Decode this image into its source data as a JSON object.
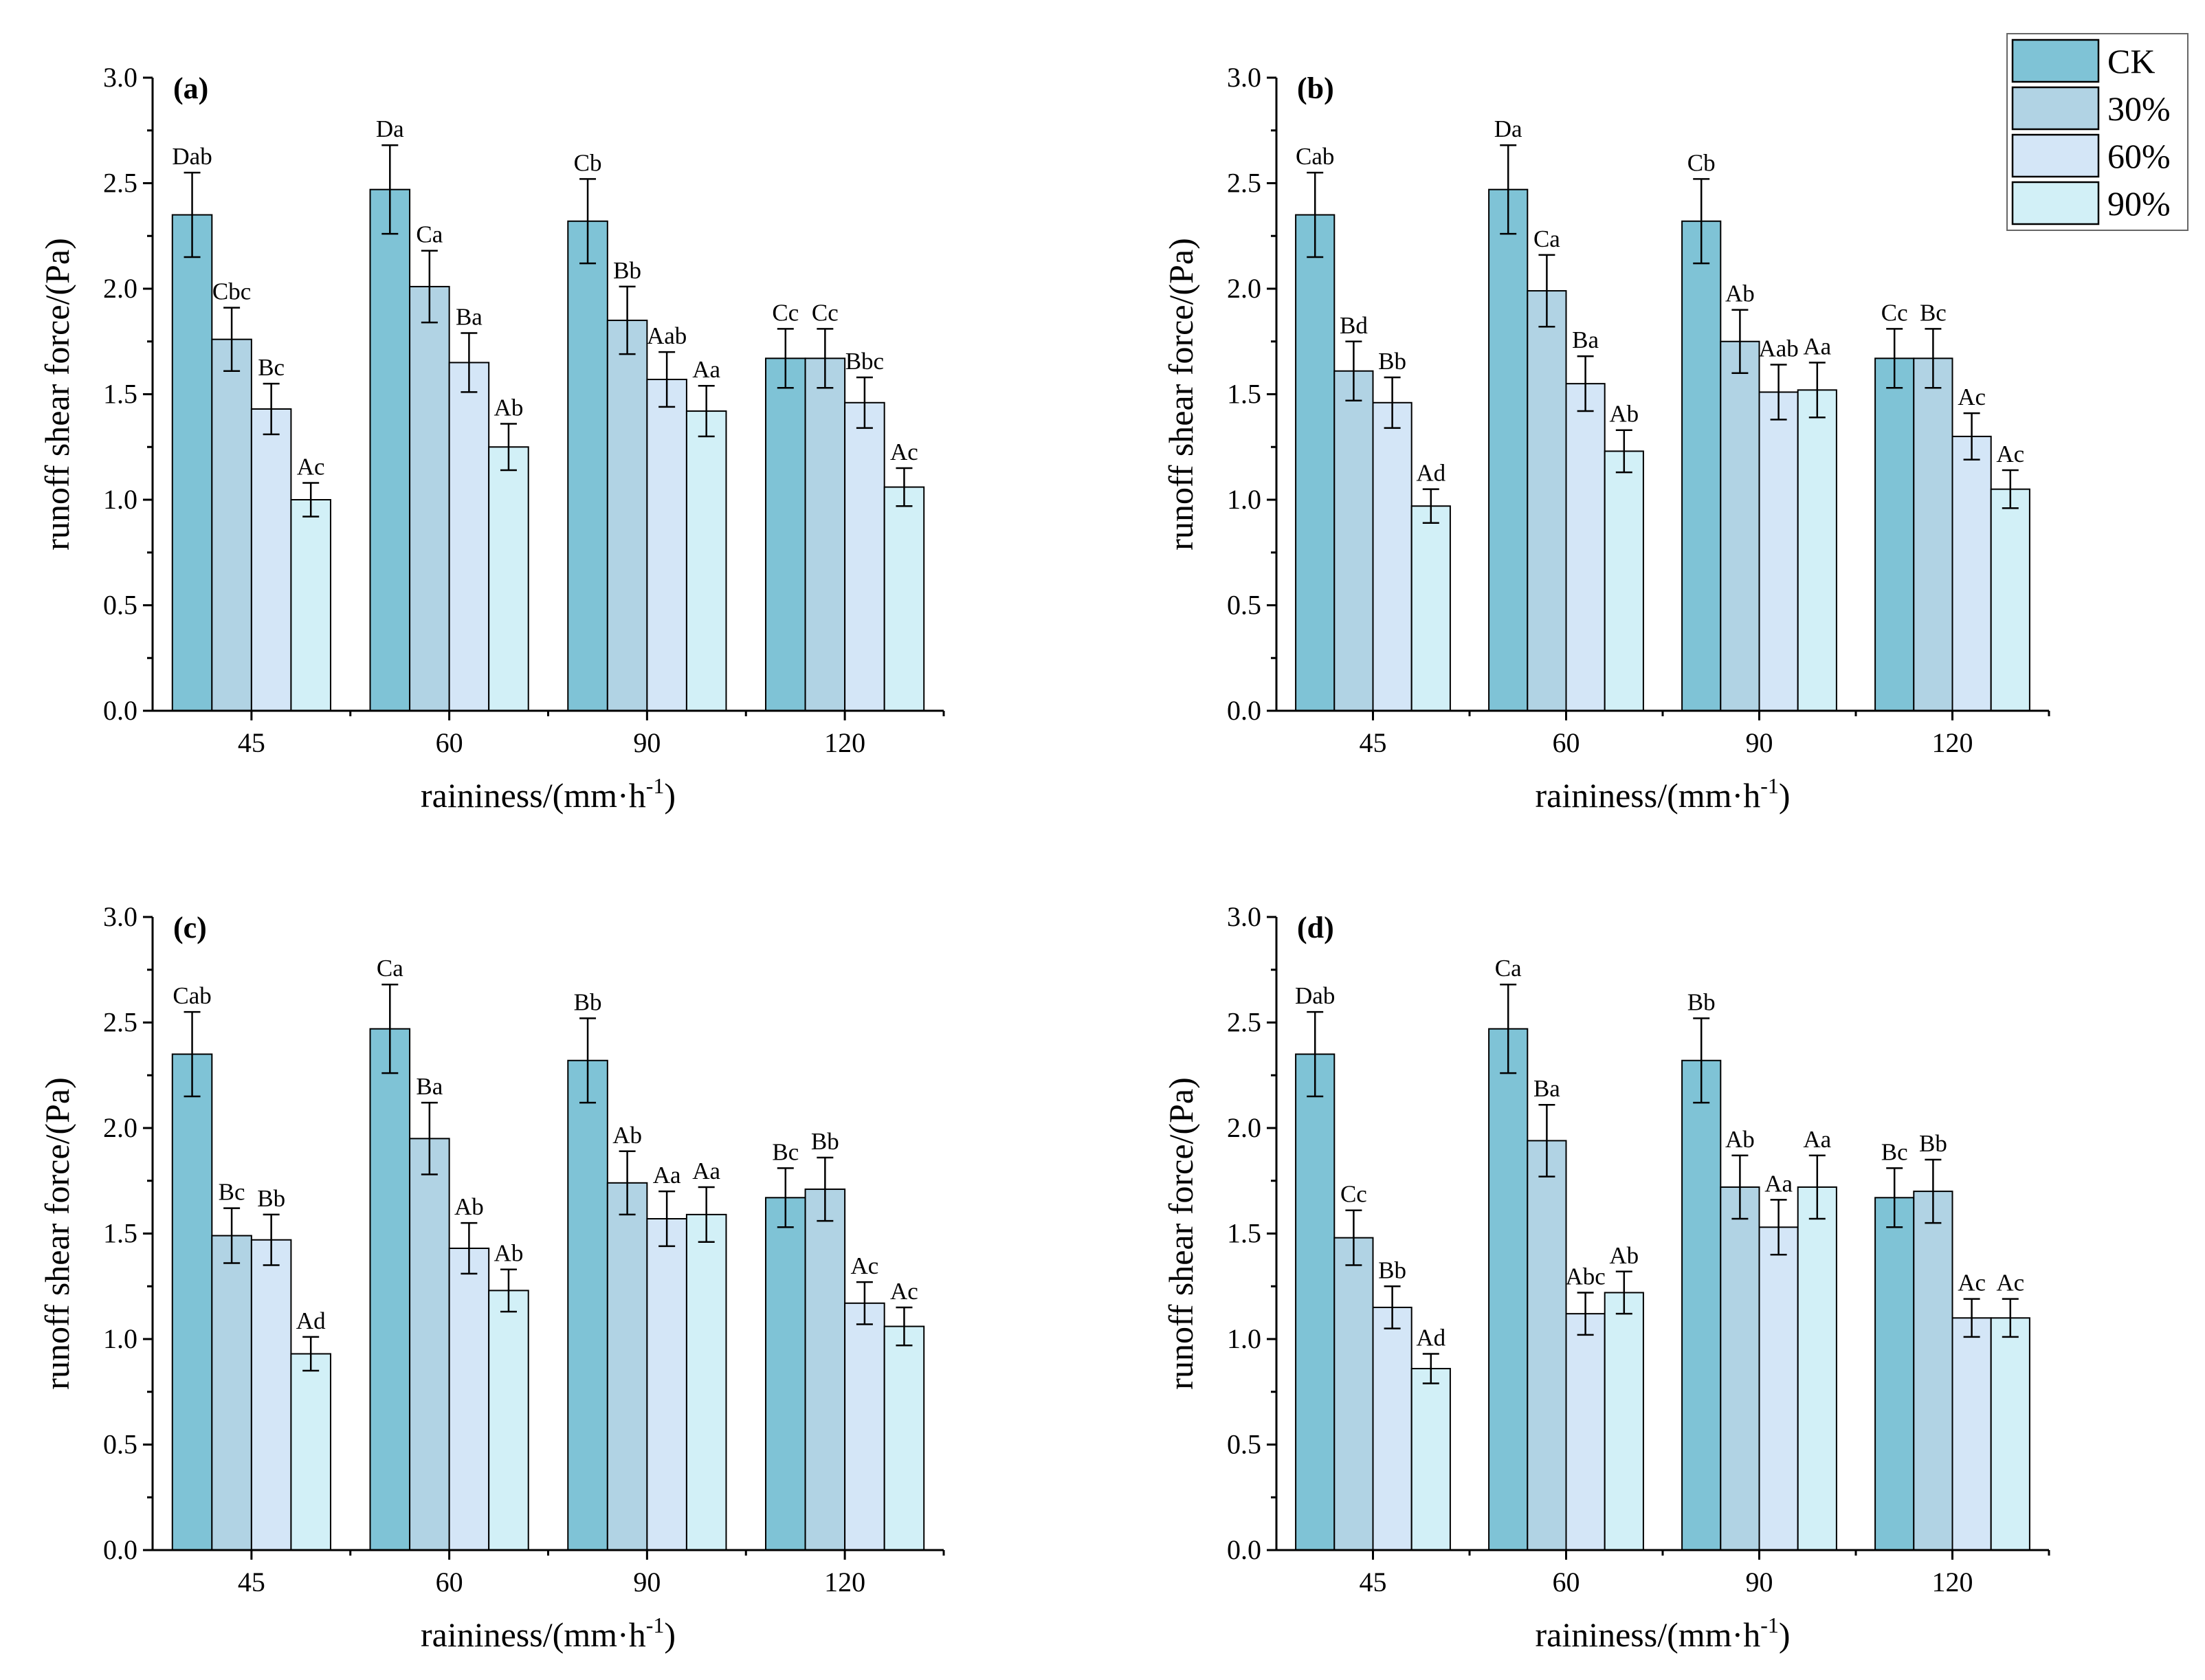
{
  "legend": {
    "entries": [
      "CK",
      "30%",
      "60%",
      "90%"
    ],
    "colors": [
      "#7fc3d6",
      "#b1d3e4",
      "#d4e6f7",
      "#d2f0f7"
    ]
  },
  "chart_data": [
    {
      "type": "bar",
      "panel_label": "(a)",
      "xlabel": "raininess/(mm·h",
      "xlabel_sup": "-1",
      "xlabel_end": ")",
      "ylabel": "runoff shear force/(Pa)",
      "ylim": [
        0,
        3.0
      ],
      "yticks": [
        "0.0",
        "0.5",
        "1.0",
        "1.5",
        "2.0",
        "2.5",
        "3.0"
      ],
      "categories": [
        "45",
        "60",
        "90",
        "120"
      ],
      "series": [
        {
          "name": "CK",
          "values": [
            2.35,
            2.47,
            2.32,
            1.67
          ],
          "errors": [
            0.2,
            0.21,
            0.2,
            0.14
          ],
          "labels": [
            "Dab",
            "Da",
            "Cb",
            "Cc"
          ]
        },
        {
          "name": "30%",
          "values": [
            1.76,
            2.01,
            1.85,
            1.67
          ],
          "errors": [
            0.15,
            0.17,
            0.16,
            0.14
          ],
          "labels": [
            "Cbc",
            "Ca",
            "Bb",
            "Cc"
          ]
        },
        {
          "name": "60%",
          "values": [
            1.43,
            1.65,
            1.57,
            1.46
          ],
          "errors": [
            0.12,
            0.14,
            0.13,
            0.12
          ],
          "labels": [
            "Bc",
            "Ba",
            "Aab",
            "Bbc"
          ]
        },
        {
          "name": "90%",
          "values": [
            1.0,
            1.25,
            1.42,
            1.06
          ],
          "errors": [
            0.08,
            0.11,
            0.12,
            0.09
          ],
          "labels": [
            "Ac",
            "Ab",
            "Aa",
            "Ac"
          ]
        }
      ]
    },
    {
      "type": "bar",
      "panel_label": "(b)",
      "xlabel": "raininess/(mm·h",
      "xlabel_sup": "-1",
      "xlabel_end": ")",
      "ylabel": "runoff shear force/(Pa)",
      "ylim": [
        0,
        3.0
      ],
      "yticks": [
        "0.0",
        "0.5",
        "1.0",
        "1.5",
        "2.0",
        "2.5",
        "3.0"
      ],
      "categories": [
        "45",
        "60",
        "90",
        "120"
      ],
      "series": [
        {
          "name": "CK",
          "values": [
            2.35,
            2.47,
            2.32,
            1.67
          ],
          "errors": [
            0.2,
            0.21,
            0.2,
            0.14
          ],
          "labels": [
            "Cab",
            "Da",
            "Cb",
            "Cc"
          ]
        },
        {
          "name": "30%",
          "values": [
            1.61,
            1.99,
            1.75,
            1.67
          ],
          "errors": [
            0.14,
            0.17,
            0.15,
            0.14
          ],
          "labels": [
            "Bd",
            "Ca",
            "Ab",
            "Bc"
          ]
        },
        {
          "name": "60%",
          "values": [
            1.46,
            1.55,
            1.51,
            1.3
          ],
          "errors": [
            0.12,
            0.13,
            0.13,
            0.11
          ],
          "labels": [
            "Bb",
            "Ba",
            "Aab",
            "Ac"
          ]
        },
        {
          "name": "90%",
          "values": [
            0.97,
            1.23,
            1.52,
            1.05
          ],
          "errors": [
            0.08,
            0.1,
            0.13,
            0.09
          ],
          "labels": [
            "Ad",
            "Ab",
            "Aa",
            "Ac"
          ]
        }
      ]
    },
    {
      "type": "bar",
      "panel_label": "(c)",
      "xlabel": "raininess/(mm·h",
      "xlabel_sup": "-1",
      "xlabel_end": ")",
      "ylabel": "runoff shear force/(Pa)",
      "ylim": [
        0,
        3.0
      ],
      "yticks": [
        "0.0",
        "0.5",
        "1.0",
        "1.5",
        "2.0",
        "2.5",
        "3.0"
      ],
      "categories": [
        "45",
        "60",
        "90",
        "120"
      ],
      "series": [
        {
          "name": "CK",
          "values": [
            2.35,
            2.47,
            2.32,
            1.67
          ],
          "errors": [
            0.2,
            0.21,
            0.2,
            0.14
          ],
          "labels": [
            "Cab",
            "Ca",
            "Bb",
            "Bc"
          ]
        },
        {
          "name": "30%",
          "values": [
            1.49,
            1.95,
            1.74,
            1.71
          ],
          "errors": [
            0.13,
            0.17,
            0.15,
            0.15
          ],
          "labels": [
            "Bc",
            "Ba",
            "Ab",
            "Bb"
          ]
        },
        {
          "name": "60%",
          "values": [
            1.47,
            1.43,
            1.57,
            1.17
          ],
          "errors": [
            0.12,
            0.12,
            0.13,
            0.1
          ],
          "labels": [
            "Bb",
            "Ab",
            "Aa",
            "Ac"
          ]
        },
        {
          "name": "90%",
          "values": [
            0.93,
            1.23,
            1.59,
            1.06
          ],
          "errors": [
            0.08,
            0.1,
            0.13,
            0.09
          ],
          "labels": [
            "Ad",
            "Ab",
            "Aa",
            "Ac"
          ]
        }
      ]
    },
    {
      "type": "bar",
      "panel_label": "(d)",
      "xlabel": "raininess/(mm·h",
      "xlabel_sup": "-1",
      "xlabel_end": ")",
      "ylabel": "runoff shear force/(Pa)",
      "ylim": [
        0,
        3.0
      ],
      "yticks": [
        "0.0",
        "0.5",
        "1.0",
        "1.5",
        "2.0",
        "2.5",
        "3.0"
      ],
      "categories": [
        "45",
        "60",
        "90",
        "120"
      ],
      "series": [
        {
          "name": "CK",
          "values": [
            2.35,
            2.47,
            2.32,
            1.67
          ],
          "errors": [
            0.2,
            0.21,
            0.2,
            0.14
          ],
          "labels": [
            "Dab",
            "Ca",
            "Bb",
            "Bc"
          ]
        },
        {
          "name": "30%",
          "values": [
            1.48,
            1.94,
            1.72,
            1.7
          ],
          "errors": [
            0.13,
            0.17,
            0.15,
            0.15
          ],
          "labels": [
            "Cc",
            "Ba",
            "Ab",
            "Bb"
          ]
        },
        {
          "name": "60%",
          "values": [
            1.15,
            1.12,
            1.53,
            1.1
          ],
          "errors": [
            0.1,
            0.1,
            0.13,
            0.09
          ],
          "labels": [
            "Bb",
            "Abc",
            "Aa",
            "Ac"
          ]
        },
        {
          "name": "90%",
          "values": [
            0.86,
            1.22,
            1.72,
            1.1
          ],
          "errors": [
            0.07,
            0.1,
            0.15,
            0.09
          ],
          "labels": [
            "Ad",
            "Ab",
            "Aa",
            "Ac"
          ]
        }
      ]
    }
  ]
}
